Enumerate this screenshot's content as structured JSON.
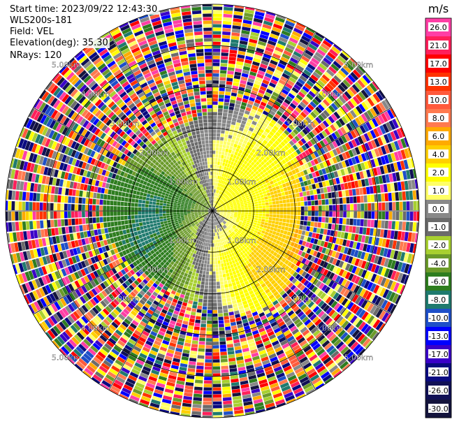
{
  "header": {
    "start_time": "Start time: 2023/09/22 12:43:30",
    "instrument": "WLS200s-181",
    "field": "Field: VEL",
    "elevation": "Elevation(deg): 35.30",
    "nrays": "NRays: 120"
  },
  "colorbar": {
    "unit": "m/s",
    "ticks": [
      "26.0",
      "21.0",
      "17.0",
      "13.0",
      "10.0",
      "8.0",
      "6.0",
      "4.0",
      "2.0",
      "1.0",
      "0.0",
      "-1.0",
      "-2.0",
      "-4.0",
      "-6.0",
      "-8.0",
      "-10.0",
      "-13.0",
      "-17.0",
      "-21.0",
      "-26.0",
      "-30.0"
    ],
    "colors": [
      "#ff3ea5",
      "#ff1f5a",
      "#ff0000",
      "#ff3300",
      "#ff5a3c",
      "#ff7a4f",
      "#ffaa00",
      "#ffd000",
      "#ffff00",
      "#ffff66",
      "#888888",
      "#6b6b6b",
      "#a8d030",
      "#6b9a2a",
      "#2e7d1f",
      "#1f7a6e",
      "#1e4fc8",
      "#0000ff",
      "#3a00c8",
      "#0a0a80",
      "#101055",
      "#14143c"
    ]
  },
  "chart_data": {
    "type": "ppi",
    "field": "VEL",
    "unit": "m/s",
    "range_rings_km": [
      1.0,
      2.0,
      3.0,
      4.0,
      5.0
    ],
    "ring_labels": [
      "1.00km",
      "2.00km",
      "3.00km",
      "4.00km",
      "5.00km"
    ],
    "max_range_km": 5.0,
    "nrays": 120,
    "spokes_deg": [
      0,
      30,
      60,
      90,
      120,
      150,
      180,
      210,
      240,
      270,
      300,
      330
    ],
    "grid": true
  }
}
